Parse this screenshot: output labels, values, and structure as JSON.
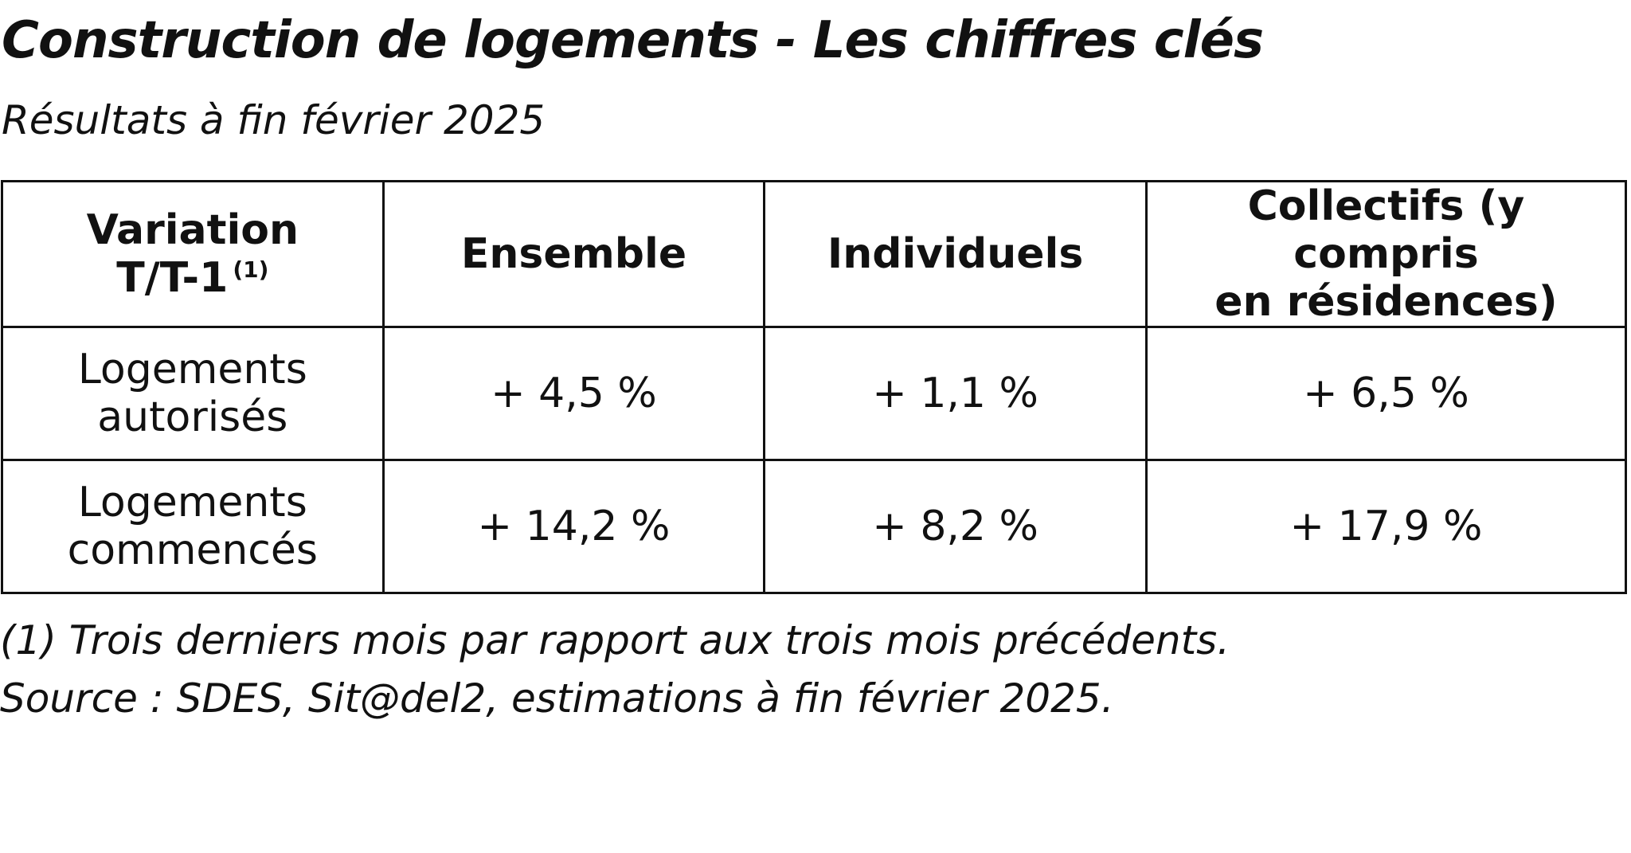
{
  "title": "Construction de logements - Les chiffres clés",
  "subtitle": "Résultats à fin février 2025",
  "table": {
    "corner_header": {
      "line1": "Variation",
      "line2": "T/T-1",
      "superscript": "(1)"
    },
    "columns": [
      "Ensemble",
      "Individuels",
      {
        "line1": "Collectifs (y compris",
        "line2": "en résidences)"
      }
    ],
    "rows": [
      {
        "label_line1": "Logements",
        "label_line2": "autorisés",
        "values": [
          "+ 4,5 %",
          "+ 1,1 %",
          "+ 6,5 %"
        ]
      },
      {
        "label_line1": "Logements",
        "label_line2": "commencés",
        "values": [
          "+ 14,2 %",
          "+ 8,2 %",
          "+ 17,9 %"
        ]
      }
    ]
  },
  "footnotes": [
    "(1) Trois derniers mois par rapport aux trois mois précédents.",
    "Source : SDES, Sit@del2, estimations à fin février 2025."
  ],
  "chart_data": {
    "type": "table",
    "title": "Construction de logements - Les chiffres clés",
    "subtitle": "Résultats à fin février 2025",
    "columns": [
      "Ensemble",
      "Individuels",
      "Collectifs (y compris en résidences)"
    ],
    "rows": [
      {
        "label": "Logements autorisés",
        "values": [
          4.5,
          1.1,
          6.5
        ]
      },
      {
        "label": "Logements commencés",
        "values": [
          14.2,
          8.2,
          17.9
        ]
      }
    ],
    "unit": "%"
  }
}
